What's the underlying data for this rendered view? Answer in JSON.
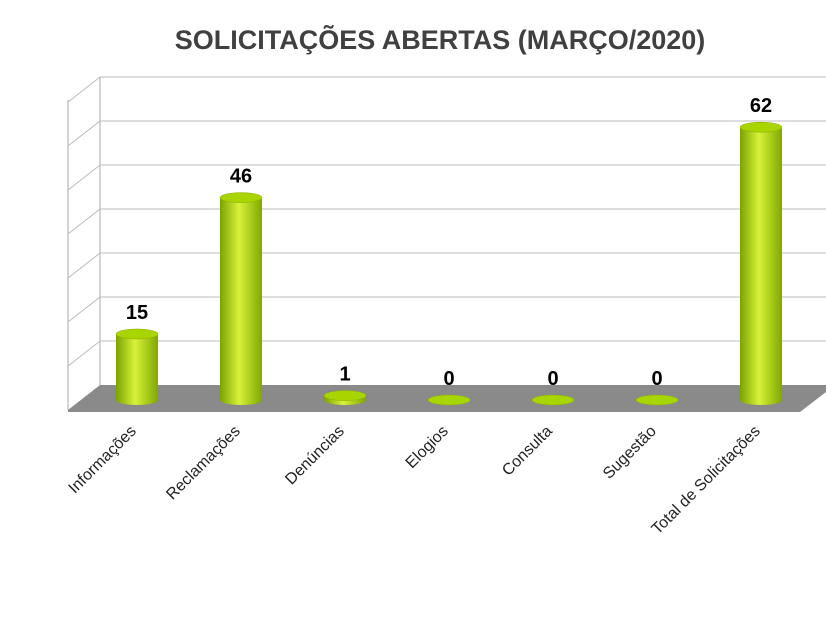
{
  "chart_data": {
    "type": "bar",
    "title": "SOLICITAÇÕES ABERTAS (MARÇO/2020)",
    "categories": [
      "Informações",
      "Reclamações",
      "Denúncias",
      "Elogios",
      "Consulta",
      "Sugestão",
      "Total de Solicitações"
    ],
    "values": [
      15,
      46,
      1,
      0,
      0,
      0,
      62
    ],
    "color": "#a8d400",
    "ylim": [
      0,
      70
    ],
    "yticks": [
      0,
      10,
      20,
      30,
      40,
      50,
      60,
      70
    ],
    "grid": true
  }
}
